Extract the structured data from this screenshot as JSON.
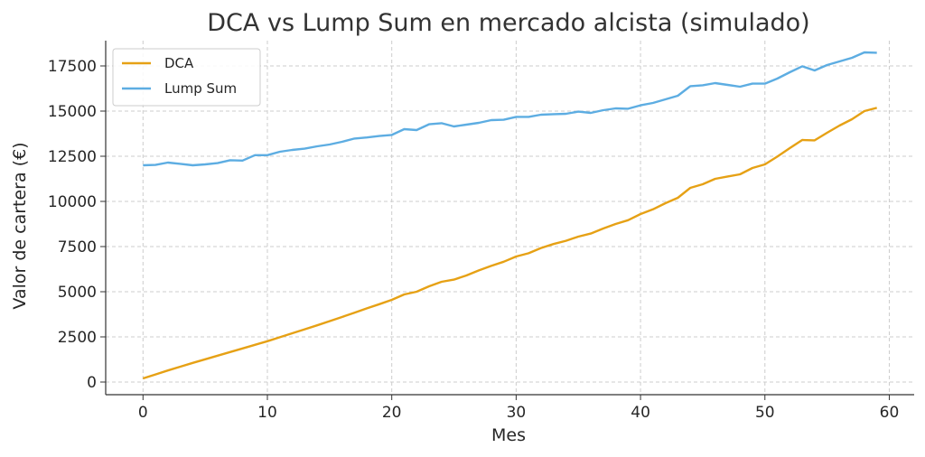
{
  "chart_data": {
    "type": "line",
    "title": "DCA vs Lump Sum en mercado alcista (simulado)",
    "xlabel": "Mes",
    "ylabel": "Valor de cartera (€)",
    "xlim": [
      -3,
      62
    ],
    "ylim": [
      -700,
      18900
    ],
    "xticks": [
      0,
      10,
      20,
      30,
      40,
      50,
      60
    ],
    "yticks": [
      0,
      2500,
      5000,
      7500,
      10000,
      12500,
      15000,
      17500
    ],
    "grid": true,
    "legend_position": "top-left",
    "x": [
      0,
      1,
      2,
      3,
      4,
      5,
      6,
      7,
      8,
      9,
      10,
      11,
      12,
      13,
      14,
      15,
      16,
      17,
      18,
      19,
      20,
      21,
      22,
      23,
      24,
      25,
      26,
      27,
      28,
      29,
      30,
      31,
      32,
      33,
      34,
      35,
      36,
      37,
      38,
      39,
      40,
      41,
      42,
      43,
      44,
      45,
      46,
      47,
      48,
      49,
      50,
      51,
      52,
      53,
      54,
      55,
      56,
      57,
      58,
      59
    ],
    "series": [
      {
        "name": "DCA",
        "color": "#E6A115",
        "values": [
          200,
          420,
          640,
          850,
          1060,
          1260,
          1460,
          1660,
          1860,
          2060,
          2260,
          2480,
          2700,
          2920,
          3140,
          3370,
          3600,
          3840,
          4080,
          4310,
          4550,
          4850,
          5000,
          5300,
          5550,
          5670,
          5900,
          6180,
          6430,
          6660,
          6950,
          7130,
          7420,
          7640,
          7820,
          8050,
          8220,
          8500,
          8750,
          8960,
          9300,
          9560,
          9900,
          10200,
          10750,
          10950,
          11250,
          11380,
          11500,
          11850,
          12050,
          12480,
          12950,
          13400,
          13380,
          13800,
          14200,
          14550,
          15000,
          15180
        ]
      },
      {
        "name": "Lump Sum",
        "color": "#5DADE2",
        "values": [
          12000,
          12020,
          12150,
          12080,
          12000,
          12050,
          12120,
          12280,
          12260,
          12560,
          12560,
          12750,
          12850,
          12920,
          13050,
          13150,
          13300,
          13480,
          13540,
          13620,
          13680,
          14000,
          13950,
          14270,
          14330,
          14150,
          14250,
          14350,
          14500,
          14520,
          14680,
          14680,
          14800,
          14830,
          14850,
          14970,
          14900,
          15050,
          15150,
          15130,
          15320,
          15450,
          15650,
          15850,
          16380,
          16430,
          16550,
          16450,
          16350,
          16520,
          16520,
          16800,
          17150,
          17480,
          17250,
          17550,
          17750,
          17950,
          18250,
          18230
        ]
      }
    ]
  }
}
